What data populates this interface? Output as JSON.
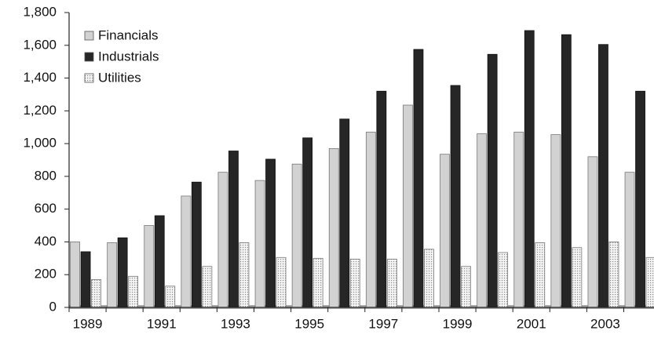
{
  "chart_data": {
    "type": "bar",
    "categories": [
      "1989",
      null,
      "1991",
      null,
      "1993",
      null,
      "1995",
      null,
      "1997",
      null,
      "1999",
      null,
      "2001",
      null,
      "2003",
      null
    ],
    "series": [
      {
        "name": "Financials",
        "color": "#d2d2d2",
        "values": [
          400,
          395,
          500,
          680,
          825,
          775,
          875,
          970,
          1070,
          1235,
          935,
          1060,
          1070,
          1055,
          920,
          825
        ]
      },
      {
        "name": "Industrials",
        "color": "#262626",
        "values": [
          340,
          425,
          560,
          765,
          955,
          905,
          1035,
          1150,
          1320,
          1575,
          1355,
          1545,
          1690,
          1665,
          1605,
          1320
        ]
      },
      {
        "name": "Utilities",
        "color": "#ececec",
        "values": [
          170,
          190,
          130,
          250,
          395,
          305,
          300,
          295,
          295,
          355,
          250,
          335,
          395,
          365,
          400,
          305
        ]
      }
    ],
    "ylim": [
      0,
      1800
    ],
    "yticks": [
      0,
      200,
      400,
      600,
      800,
      {
        "value": 1000,
        "label": "1,000"
      },
      {
        "value": 1200,
        "label": "1,200"
      },
      {
        "value": 1400,
        "label": "1,400"
      },
      {
        "value": 1600,
        "label": "1,600"
      },
      {
        "value": 1800,
        "label": "1,800"
      }
    ],
    "legend": "upper-left"
  }
}
